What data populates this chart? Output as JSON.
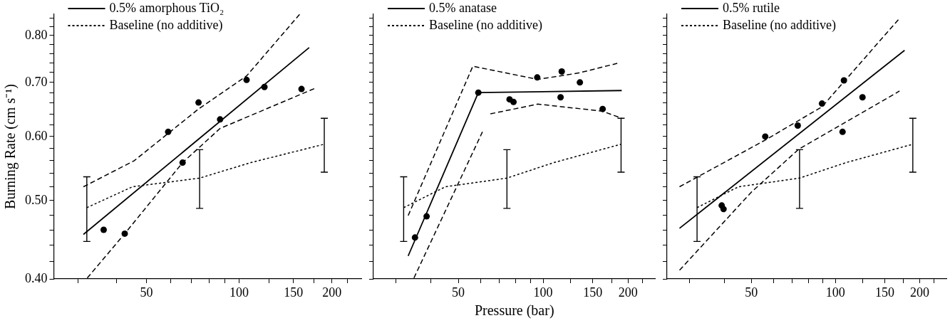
{
  "chart_data": [
    {
      "type": "line",
      "ylabel": "Burning Rate (cm s⁻¹)",
      "log": "xy",
      "legend": "top left",
      "xlim": [
        25,
        250
      ],
      "ylim": [
        0.4,
        0.85
      ],
      "xticks": [
        {
          "value": 30,
          "label": null
        },
        {
          "value": 40,
          "label": null
        },
        50,
        {
          "value": 60,
          "label": null
        },
        {
          "value": 70,
          "label": null
        },
        {
          "value": 80,
          "label": null
        },
        {
          "value": 90,
          "label": null
        },
        100,
        {
          "value": 125,
          "label": null
        },
        150,
        {
          "value": 175,
          "label": null
        },
        200,
        {
          "value": 225,
          "label": null
        }
      ],
      "yticks": [
        {
          "value": 0.4,
          "label": "0.40"
        },
        {
          "value": 0.42,
          "label": null
        },
        {
          "value": 0.44,
          "label": null
        },
        {
          "value": 0.46,
          "label": null
        },
        {
          "value": 0.48,
          "label": null
        },
        {
          "value": 0.5,
          "label": "0.50"
        },
        {
          "value": 0.52,
          "label": null
        },
        {
          "value": 0.54,
          "label": null
        },
        {
          "value": 0.56,
          "label": null
        },
        {
          "value": 0.58,
          "label": null
        },
        {
          "value": 0.6,
          "label": "0.60"
        },
        {
          "value": 0.62,
          "label": null
        },
        {
          "value": 0.64,
          "label": null
        },
        {
          "value": 0.66,
          "label": null
        },
        {
          "value": 0.68,
          "label": null
        },
        {
          "value": 0.7,
          "label": "0.70"
        },
        {
          "value": 0.72,
          "label": null
        },
        {
          "value": 0.74,
          "label": null
        },
        {
          "value": 0.76,
          "label": null
        },
        {
          "value": 0.78,
          "label": null
        },
        {
          "value": 0.8,
          "label": "0.80"
        },
        {
          "value": 0.82,
          "label": null
        },
        {
          "value": 0.84,
          "label": null
        }
      ],
      "series": [
        {
          "name": "0.5% amorphous TiO₂",
          "type": "line",
          "line_style": "solid",
          "color": "#000000",
          "x": [
            31.2,
            168.8
          ],
          "values": [
            0.454,
            0.773
          ]
        },
        {
          "name": "Baseline (no additive)",
          "type": "line",
          "line_style": "dotted",
          "color": "#000000",
          "x": [
            32,
            45,
            74.4,
            109,
            189
          ],
          "values": [
            0.49,
            0.52,
            0.533,
            0.557,
            0.587
          ],
          "errors": [
            [
              0.445,
              0.535
            ],
            null,
            [
              0.489,
              0.578
            ],
            null,
            [
              0.542,
              0.632
            ]
          ]
        },
        {
          "type": "line",
          "line_style": "dashed",
          "color": "#000000",
          "x": [
            31.2,
            45.6,
            73.8,
            105.7,
            157.3
          ],
          "values": [
            0.52,
            0.56,
            0.649,
            0.713,
            0.85
          ]
        },
        {
          "type": "line",
          "line_style": "dashed",
          "color": "#000000",
          "x": [
            32.1,
            42.5,
            65.5,
            86.7,
            177.4
          ],
          "values": [
            0.401,
            0.455,
            0.557,
            0.614,
            0.689
          ]
        },
        {
          "type": "scatter",
          "marker": "circle",
          "color": "#000000",
          "x": [
            36.3,
            42.5,
            58.8,
            65.5,
            73.8,
            86.7,
            105.7,
            120.8,
            159.4
          ],
          "values": [
            0.46,
            0.455,
            0.608,
            0.557,
            0.661,
            0.63,
            0.705,
            0.691,
            0.687
          ]
        }
      ]
    },
    {
      "type": "line",
      "xlabel": "Pressure (bar)",
      "log": "xy",
      "legend": "top left",
      "tick_labels": "x",
      "xlim": [
        25,
        250
      ],
      "ylim": [
        0.4,
        0.85
      ],
      "xticks": [
        {
          "value": 30,
          "label": null
        },
        {
          "value": 40,
          "label": null
        },
        50,
        {
          "value": 60,
          "label": null
        },
        {
          "value": 70,
          "label": null
        },
        {
          "value": 80,
          "label": null
        },
        {
          "value": 90,
          "label": null
        },
        100,
        {
          "value": 125,
          "label": null
        },
        150,
        {
          "value": 175,
          "label": null
        },
        200,
        {
          "value": 225,
          "label": null
        }
      ],
      "yticks": [
        {
          "value": 0.4,
          "label": null
        },
        {
          "value": 0.42,
          "label": null
        },
        {
          "value": 0.44,
          "label": null
        },
        {
          "value": 0.46,
          "label": null
        },
        {
          "value": 0.48,
          "label": null
        },
        {
          "value": 0.5,
          "label": null
        },
        {
          "value": 0.52,
          "label": null
        },
        {
          "value": 0.54,
          "label": null
        },
        {
          "value": 0.56,
          "label": null
        },
        {
          "value": 0.58,
          "label": null
        },
        {
          "value": 0.6,
          "label": null
        },
        {
          "value": 0.62,
          "label": null
        },
        {
          "value": 0.64,
          "label": null
        },
        {
          "value": 0.66,
          "label": null
        },
        {
          "value": 0.68,
          "label": null
        },
        {
          "value": 0.7,
          "label": null
        },
        {
          "value": 0.72,
          "label": null
        },
        {
          "value": 0.74,
          "label": null
        },
        {
          "value": 0.76,
          "label": null
        },
        {
          "value": 0.78,
          "label": null
        },
        {
          "value": 0.8,
          "label": null
        },
        {
          "value": 0.82,
          "label": null
        },
        {
          "value": 0.84,
          "label": null
        }
      ],
      "series": [
        {
          "name": "0.5% anatase",
          "type": "line",
          "line_style": "solid",
          "color": "#000000",
          "x": [
            33.2,
            58.9,
            190
          ],
          "values": [
            0.427,
            0.68,
            0.684
          ]
        },
        {
          "name": "Baseline (no additive)",
          "type": "line",
          "line_style": "dotted",
          "color": "#000000",
          "x": [
            32,
            45,
            74.4,
            109,
            189
          ],
          "values": [
            0.49,
            0.52,
            0.533,
            0.557,
            0.587
          ],
          "errors": [
            [
              0.445,
              0.535
            ],
            null,
            [
              0.489,
              0.578
            ],
            null,
            [
              0.542,
              0.632
            ]
          ]
        },
        {
          "type": "line",
          "line_style": "dashed",
          "color": "#000000",
          "x": [
            33.2,
            56.3,
            95.7,
            133.7,
            183.2
          ],
          "values": [
            0.479,
            0.733,
            0.706,
            0.719,
            0.739
          ]
        },
        {
          "type": "line",
          "line_style": "dashed",
          "color": "#000000",
          "x": [
            34.8,
            60.9,
            63,
            65,
            95.7,
            161.9,
            190
          ],
          "values": [
            0.401,
            0.608,
            null,
            0.64,
            0.658,
            0.645,
            0.632
          ]
        },
        {
          "type": "scatter",
          "marker": "circle",
          "color": "#000000",
          "x": [
            35.1,
            38.6,
            58.9,
            76,
            78.5,
            95.3,
            116.4,
            115.3,
            135,
            162.6
          ],
          "values": [
            0.45,
            0.478,
            0.68,
            0.667,
            0.662,
            0.71,
            0.722,
            0.671,
            0.7,
            0.649
          ]
        }
      ]
    },
    {
      "type": "line",
      "log": "xy",
      "legend": "top left",
      "tick_labels": "x",
      "xlim": [
        25,
        250
      ],
      "ylim": [
        0.4,
        0.85
      ],
      "xticks": [
        {
          "value": 30,
          "label": null
        },
        {
          "value": 40,
          "label": null
        },
        50,
        {
          "value": 60,
          "label": null
        },
        {
          "value": 70,
          "label": null
        },
        {
          "value": 80,
          "label": null
        },
        {
          "value": 90,
          "label": null
        },
        100,
        {
          "value": 125,
          "label": null
        },
        150,
        {
          "value": 175,
          "label": null
        },
        200,
        {
          "value": 225,
          "label": null
        }
      ],
      "yticks": [
        {
          "value": 0.4,
          "label": null
        },
        {
          "value": 0.42,
          "label": null
        },
        {
          "value": 0.44,
          "label": null
        },
        {
          "value": 0.46,
          "label": null
        },
        {
          "value": 0.48,
          "label": null
        },
        {
          "value": 0.5,
          "label": null
        },
        {
          "value": 0.52,
          "label": null
        },
        {
          "value": 0.54,
          "label": null
        },
        {
          "value": 0.56,
          "label": null
        },
        {
          "value": 0.58,
          "label": null
        },
        {
          "value": 0.6,
          "label": null
        },
        {
          "value": 0.62,
          "label": null
        },
        {
          "value": 0.64,
          "label": null
        },
        {
          "value": 0.66,
          "label": null
        },
        {
          "value": 0.68,
          "label": null
        },
        {
          "value": 0.7,
          "label": null
        },
        {
          "value": 0.72,
          "label": null
        },
        {
          "value": 0.74,
          "label": null
        },
        {
          "value": 0.76,
          "label": null
        },
        {
          "value": 0.78,
          "label": null
        },
        {
          "value": 0.8,
          "label": null
        },
        {
          "value": 0.82,
          "label": null
        },
        {
          "value": 0.84,
          "label": null
        }
      ],
      "series": [
        {
          "name": "0.5% rutile",
          "type": "line",
          "line_style": "solid",
          "color": "#000000",
          "x": [
            27.7,
            176.6
          ],
          "values": [
            0.462,
            0.767
          ]
        },
        {
          "name": "Baseline (no additive)",
          "type": "line",
          "line_style": "dotted",
          "color": "#000000",
          "x": [
            32,
            45,
            74.4,
            109,
            189
          ],
          "values": [
            0.49,
            0.52,
            0.533,
            0.557,
            0.587
          ],
          "errors": [
            [
              0.445,
              0.535
            ],
            null,
            [
              0.489,
              0.578
            ],
            null,
            [
              0.542,
              0.632
            ]
          ]
        },
        {
          "type": "line",
          "line_style": "dashed",
          "color": "#000000",
          "x": [
            27.7,
            56.1,
            89.5,
            169.4
          ],
          "values": [
            0.52,
            0.594,
            0.653,
            0.84
          ]
        },
        {
          "type": "line",
          "line_style": "dashed",
          "color": "#000000",
          "x": [
            27.7,
            50,
            74,
            169.4
          ],
          "values": [
            0.41,
            0.512,
            0.579,
            0.683
          ]
        },
        {
          "type": "scatter",
          "marker": "circle",
          "color": "#000000",
          "x": [
            39.2,
            39.8,
            56.1,
            73.3,
            89.5,
            107.2,
            106,
            124.9
          ],
          "values": [
            0.493,
            0.488,
            0.6,
            0.619,
            0.659,
            0.704,
            0.608,
            0.671
          ]
        }
      ]
    }
  ]
}
